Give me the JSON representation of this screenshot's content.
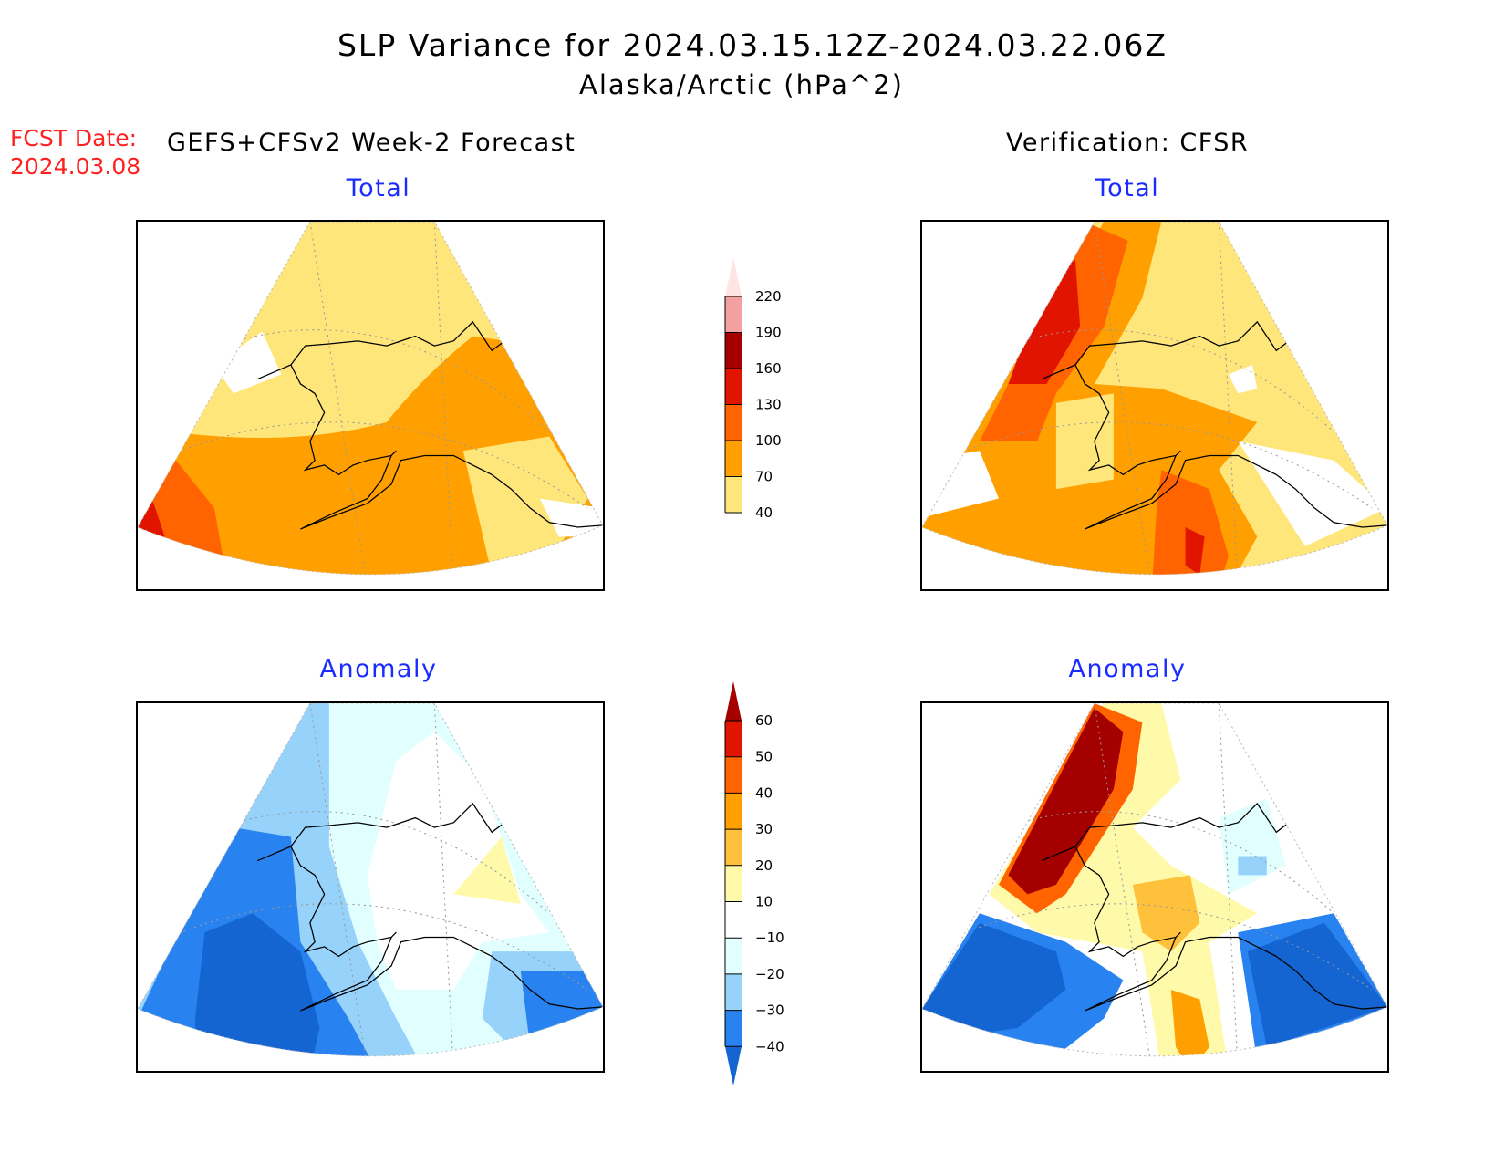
{
  "title": "SLP Variance for 2024.03.15.12Z-2024.03.22.06Z",
  "subtitle": "Alaska/Arctic (hPa^2)",
  "fcst_label": "FCST Date:",
  "fcst_date": "2024.03.08",
  "left_header": "GEFS+CFSv2 Week-2 Forecast",
  "right_header": "Verification: CFSR",
  "panels": {
    "top_left": "Total",
    "top_right": "Total",
    "bottom_left": "Anomaly",
    "bottom_right": "Anomaly"
  },
  "chart_data": [
    {
      "type": "heatmap",
      "title": "Total (colorbar)",
      "levels": [
        40,
        70,
        100,
        130,
        160,
        190,
        220
      ],
      "tick_labels": [
        "40",
        "70",
        "100",
        "130",
        "160",
        "190",
        "220"
      ],
      "colors": [
        "#ffffff",
        "#ffe67a",
        "#ffa000",
        "#ff6400",
        "#e11400",
        "#a50000",
        "#f2a0a0",
        "#ffe4e4"
      ]
    },
    {
      "type": "heatmap",
      "title": "Anomaly (colorbar)",
      "levels": [
        -40,
        -30,
        -20,
        -10,
        10,
        20,
        30,
        40,
        50,
        60
      ],
      "tick_labels": [
        "-40",
        "-30",
        "-20",
        "-10",
        "10",
        "20",
        "30",
        "40",
        "50",
        "60"
      ],
      "colors": [
        "#1464d2",
        "#2882f0",
        "#96d2fa",
        "#e1ffff",
        "#ffffff",
        "#fffaaa",
        "#ffc03c",
        "#ffa000",
        "#ff6400",
        "#e11400",
        "#a50000"
      ]
    }
  ]
}
